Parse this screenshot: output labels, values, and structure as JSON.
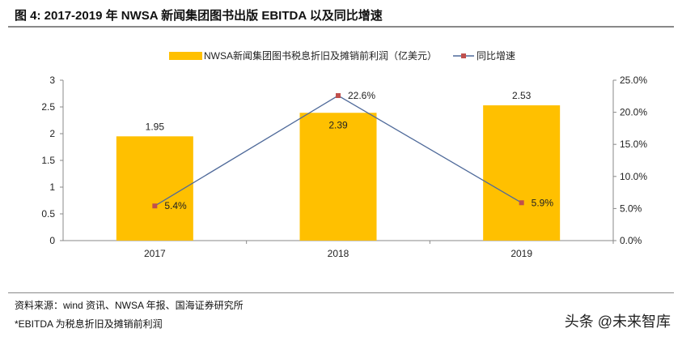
{
  "title": "图 4:  2017-2019 年 NWSA 新闻集团图书出版 EBITDA 以及同比增速",
  "source": "资料来源：wind 资讯、NWSA 年报、国海证券研究所",
  "note": "*EBITDA 为税息折旧及摊销前利润",
  "watermark": "头条 @未来智库",
  "chart_data": {
    "type": "bar+line",
    "categories": [
      "2017",
      "2018",
      "2019"
    ],
    "series": [
      {
        "name": "NWSA新闻集团图书税息折旧及摊销前利润（亿美元）",
        "type": "bar",
        "axis": "left",
        "color": "#FFC000",
        "values": [
          1.95,
          2.39,
          2.53
        ],
        "labels": [
          "1.95",
          "2.39",
          "2.53"
        ]
      },
      {
        "name": "同比增速",
        "type": "line",
        "axis": "right",
        "color": "#4F6A9A",
        "marker_color": "#C0504D",
        "values": [
          5.4,
          22.6,
          5.9
        ],
        "labels": [
          "5.4%",
          "22.6%",
          "5.9%"
        ]
      }
    ],
    "left_axis": {
      "range": [
        0,
        3
      ],
      "ticks": [
        "0",
        "0.5",
        "1",
        "1.5",
        "2",
        "2.5",
        "3"
      ]
    },
    "right_axis": {
      "range": [
        0,
        25
      ],
      "ticks": [
        "0.0%",
        "5.0%",
        "10.0%",
        "15.0%",
        "20.0%",
        "25.0%"
      ]
    },
    "grid": false,
    "legend": "top"
  }
}
